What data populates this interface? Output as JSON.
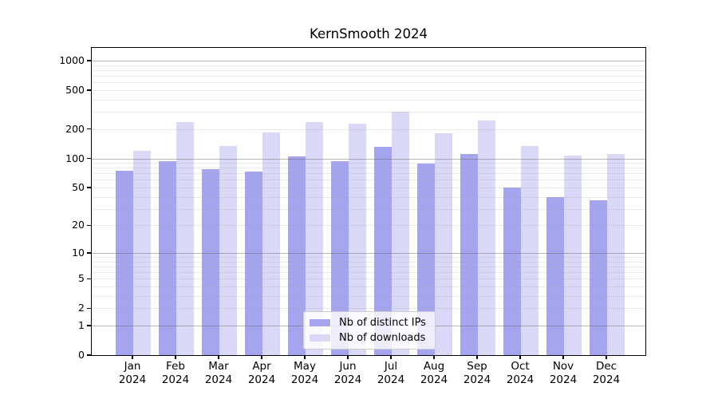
{
  "title": "KernSmooth 2024",
  "chart_data": {
    "type": "bar",
    "title": "KernSmooth 2024",
    "scale": "log10(x+1)",
    "grid": true,
    "legend_position": "lower center",
    "categories": [
      "Jan",
      "Feb",
      "Mar",
      "Apr",
      "May",
      "Jun",
      "Jul",
      "Aug",
      "Sep",
      "Oct",
      "Nov",
      "Dec"
    ],
    "year_label": "2024",
    "series": [
      {
        "name": "Nb of distinct IPs",
        "color": "#a5a5ef",
        "values": [
          75,
          94,
          77,
          73,
          104,
          94,
          131,
          88,
          110,
          50,
          40,
          37
        ]
      },
      {
        "name": "Nb of downloads",
        "color": "#d9d9f7",
        "values": [
          120,
          236,
          133,
          184,
          237,
          225,
          299,
          181,
          243,
          135,
          107,
          112
        ]
      }
    ],
    "yticks": [
      0,
      1,
      2,
      5,
      10,
      20,
      50,
      100,
      200,
      500,
      1000
    ],
    "ylim": [
      0,
      1320
    ],
    "xlabel": "",
    "ylabel": ""
  },
  "colors": {
    "bar_dark": "#a5a5ef",
    "bar_light": "#d9d9f7",
    "grid_major": "#bdbdbd",
    "grid_minor": "#e8e8e8",
    "frame": "#000000",
    "legend_border": "#cccccc"
  }
}
